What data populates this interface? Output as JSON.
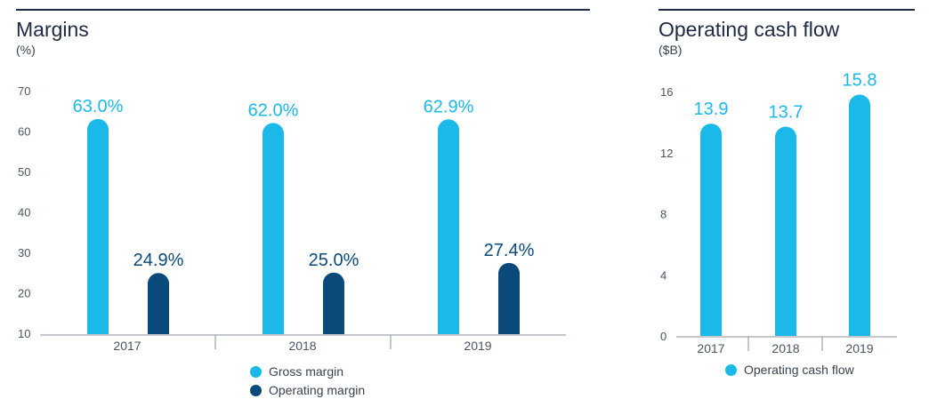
{
  "colors": {
    "gross": "#1bb9ea",
    "operating": "#0a4a7a",
    "axis_text": "#4a5562",
    "rule": "#1f2a44"
  },
  "margins": {
    "title": "Margins",
    "unit": "(%)"
  },
  "cashflow": {
    "title": "Operating cash flow",
    "unit": "($B)"
  },
  "chart_data": [
    {
      "type": "bar",
      "title": "Margins",
      "ylabel": "(%)",
      "categories": [
        "2017",
        "2018",
        "2019"
      ],
      "yticks": [
        "70",
        "60",
        "50",
        "40",
        "30",
        "20",
        "10"
      ],
      "ylim": [
        10,
        70
      ],
      "legend": "bottom",
      "series": [
        {
          "name": "Gross margin",
          "values": [
            63.0,
            62.0,
            62.9
          ],
          "labels": [
            "63.0%",
            "62.0%",
            "62.9%"
          ],
          "color": "#1bb9ea"
        },
        {
          "name": "Operating margin",
          "values": [
            24.9,
            25.0,
            27.4
          ],
          "labels": [
            "24.9%",
            "25.0%",
            "27.4%"
          ],
          "color": "#0a4a7a"
        }
      ]
    },
    {
      "type": "bar",
      "title": "Operating cash flow",
      "ylabel": "($B)",
      "categories": [
        "2017",
        "2018",
        "2019"
      ],
      "yticks": [
        "16",
        "12",
        "8",
        "4",
        "0"
      ],
      "ylim": [
        0,
        16
      ],
      "legend": "bottom",
      "series": [
        {
          "name": "Operating cash flow",
          "values": [
            13.9,
            13.7,
            15.8
          ],
          "labels": [
            "13.9",
            "13.7",
            "15.8"
          ],
          "color": "#1bb9ea"
        }
      ]
    }
  ]
}
